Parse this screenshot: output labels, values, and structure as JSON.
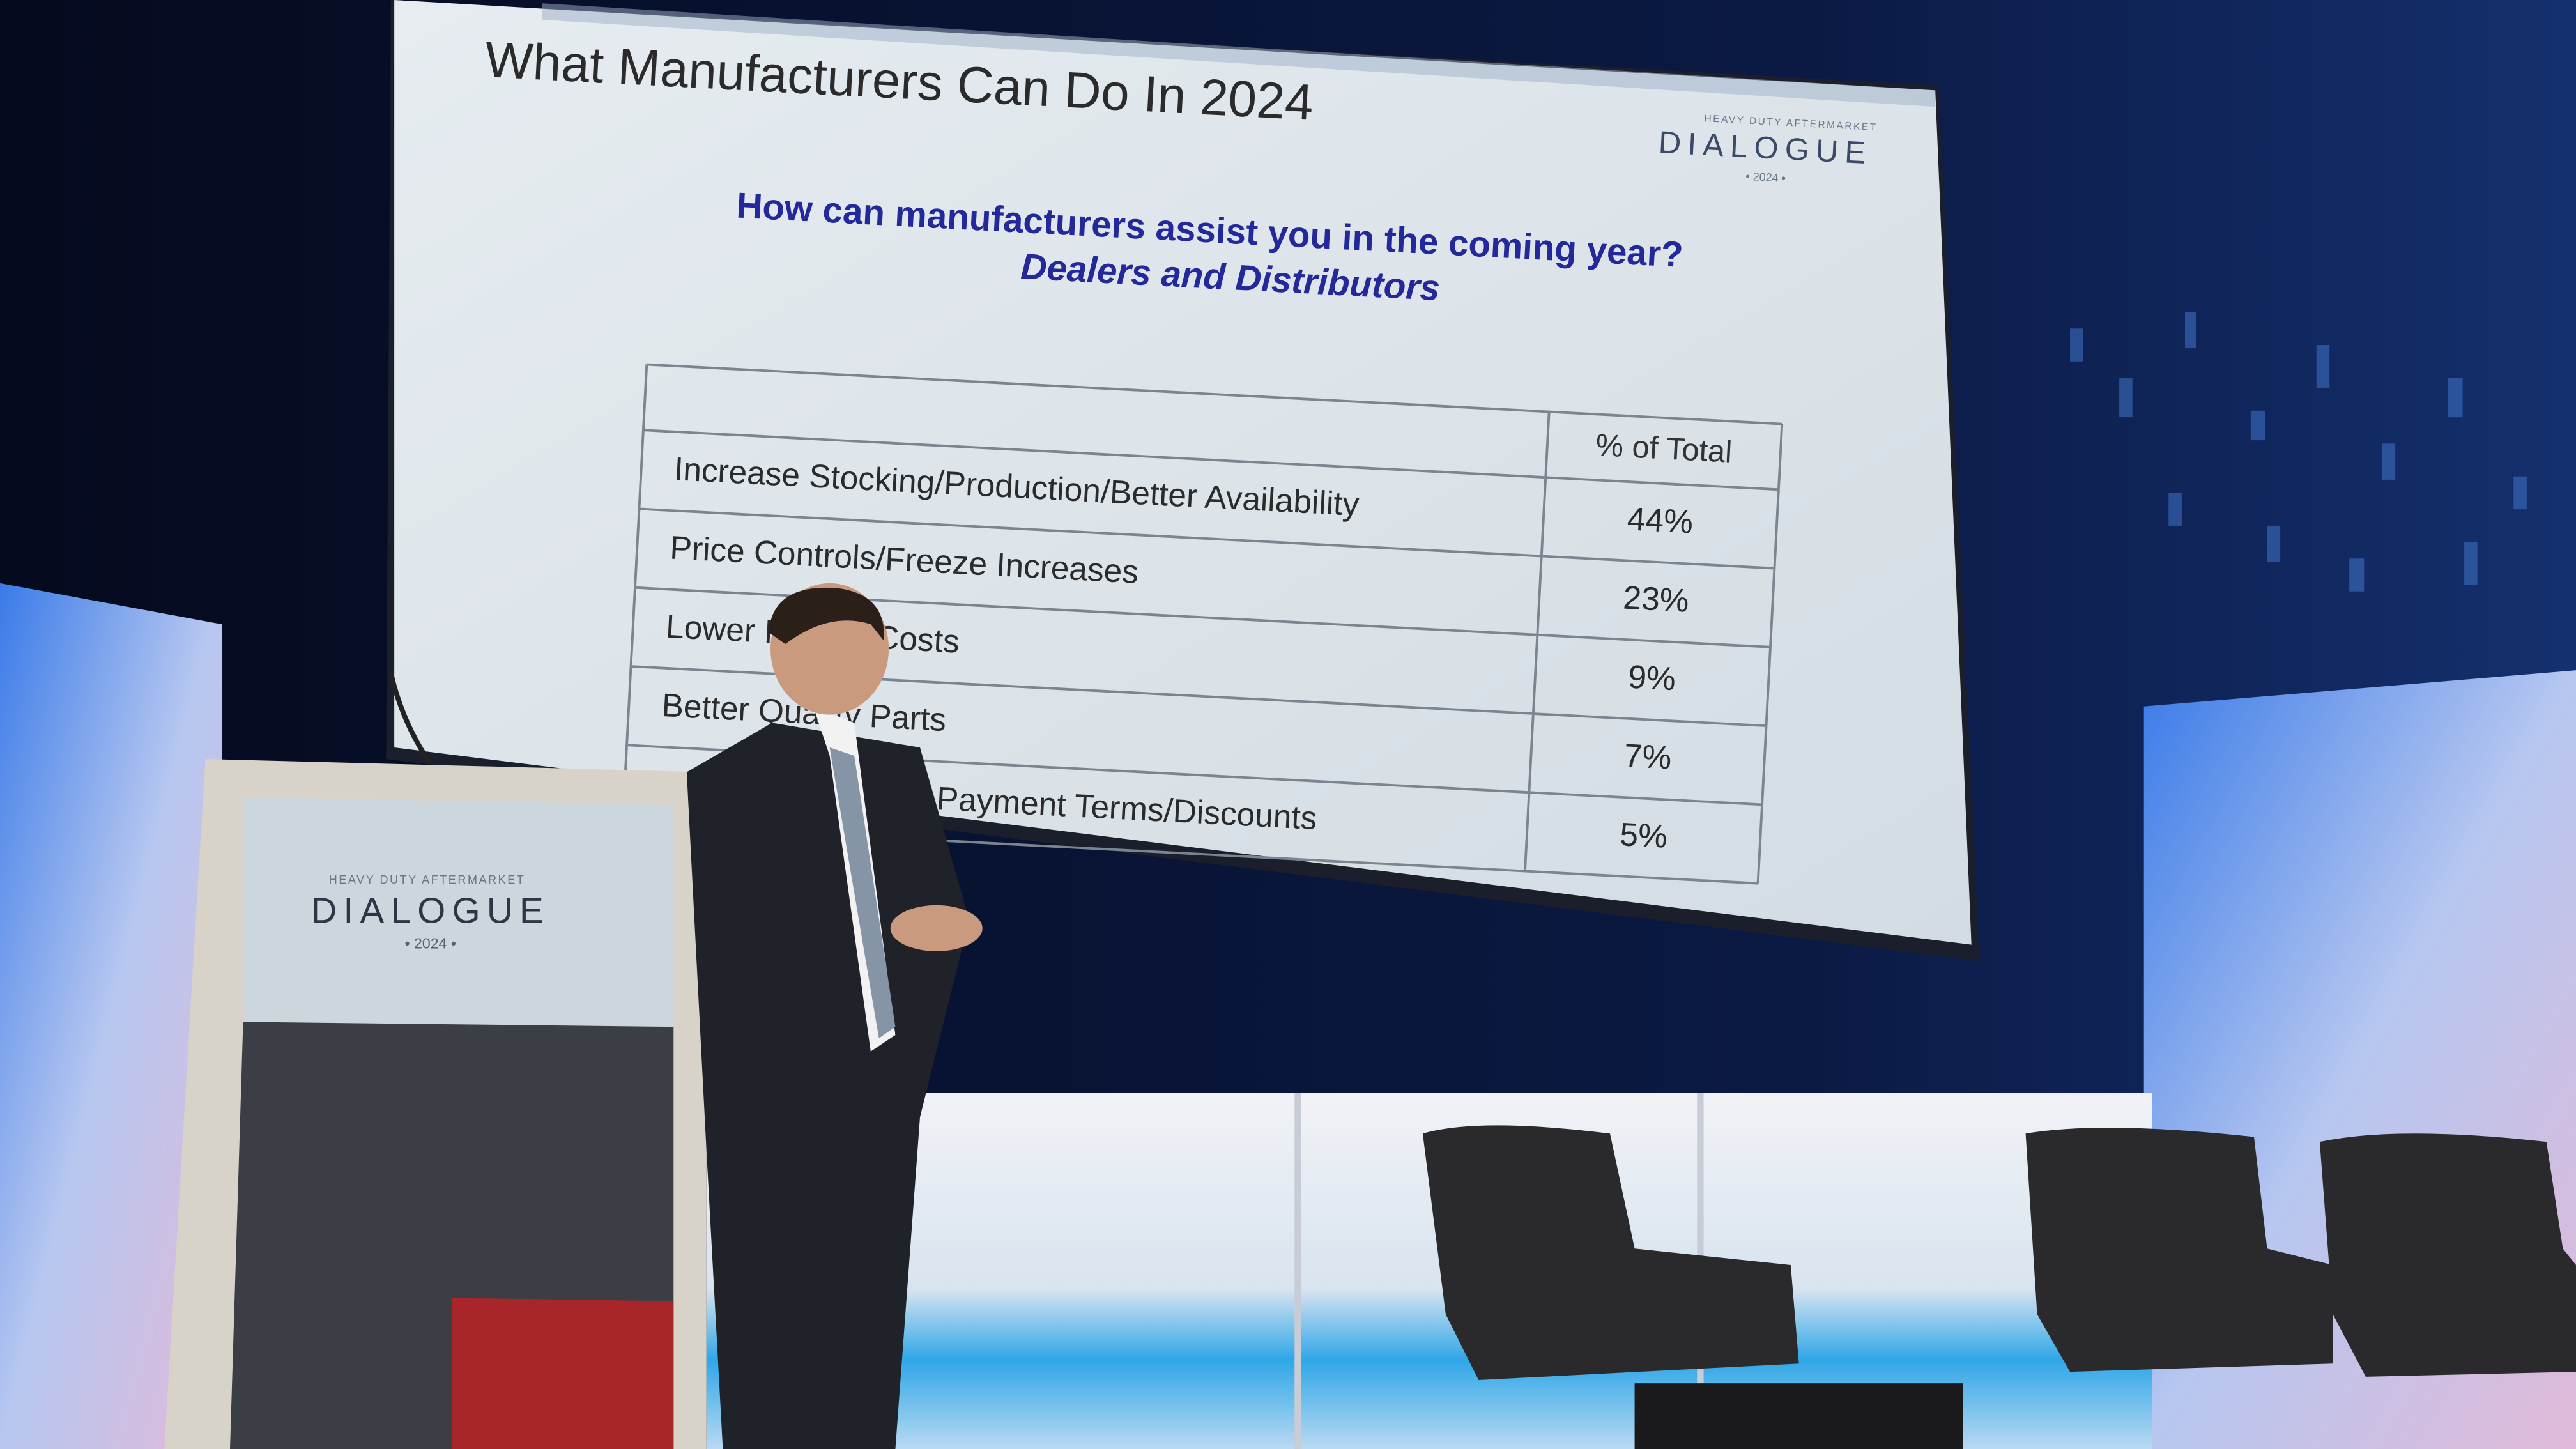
{
  "slide": {
    "title": "What Manufacturers Can Do In 2024",
    "logo": {
      "tagline": "HEAVY DUTY AFTERMARKET",
      "name": "DIALOGUE",
      "year": "• 2024 •"
    },
    "question": "How can manufacturers assist you in the coming year?",
    "subtitle": "Dealers and Distributors",
    "table": {
      "header": "% of Total",
      "rows": [
        [
          "Increase Stocking/Production/Better Availability",
          "44%"
        ],
        [
          "Price Controls/Freeze Increases",
          "23%"
        ],
        [
          "Lower Freight Costs",
          "9%"
        ],
        [
          "Better Quality Parts",
          "7%"
        ],
        [
          "Rebates/Extended Payment Terms/Discounts",
          "5%"
        ]
      ]
    }
  },
  "podium": {
    "tagline": "HEAVY DUTY AFTERMARKET",
    "name": "DIALOGUE",
    "year": "• 2024 •"
  }
}
